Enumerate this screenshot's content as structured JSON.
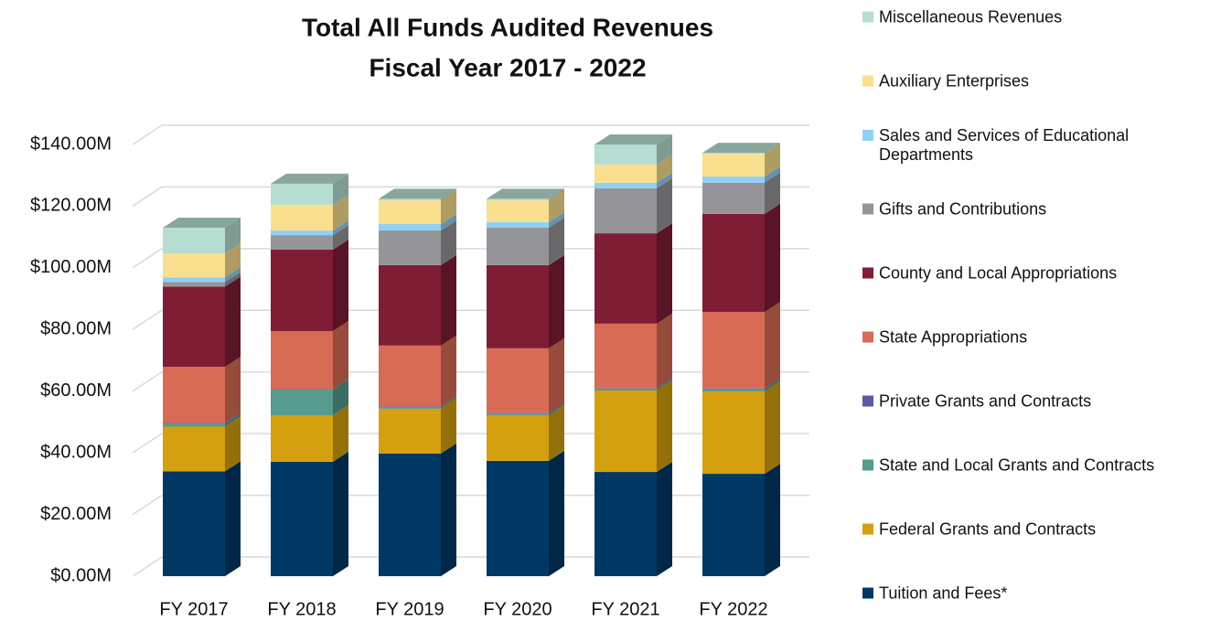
{
  "chart_data": {
    "type": "stacked-bar-3d",
    "title": "Total All Funds Audited Revenues",
    "subtitle": "Fiscal Year 2017 - 2022",
    "categories": [
      "FY 2017",
      "FY 2018",
      "FY 2019",
      "FY 2020",
      "FY 2021",
      "FY 2022"
    ],
    "ylim": [
      0,
      140
    ],
    "yticks": [
      {
        "value": 0,
        "label": "$0.00M"
      },
      {
        "value": 20,
        "label": "$20.00M"
      },
      {
        "value": 40,
        "label": "$40.00M"
      },
      {
        "value": 60,
        "label": "$60.00M"
      },
      {
        "value": 80,
        "label": "$80.00M"
      },
      {
        "value": 100,
        "label": "$100.00M"
      },
      {
        "value": 120,
        "label": "$120.00M"
      },
      {
        "value": 140,
        "label": "$140.00M"
      }
    ],
    "grid": true,
    "series": [
      {
        "name": "Tuition and Fees*",
        "color": "#003865",
        "values": [
          34,
          37.1,
          39.8,
          37.4,
          33.8,
          33.2
        ]
      },
      {
        "name": "Federal Grants and Contracts",
        "color": "#d4a00f",
        "values": [
          14.5,
          15.1,
          14.5,
          14.8,
          26.4,
          26.7
        ]
      },
      {
        "name": "State and Local Grants and Contracts",
        "color": "#579a8e",
        "values": [
          1,
          8.3,
          0.5,
          0.5,
          0.5,
          0.8
        ]
      },
      {
        "name": "Private Grants and Contracts",
        "color": "#5c5aa0",
        "values": [
          0.2,
          0.2,
          0.2,
          0.2,
          0.2,
          0.2
        ]
      },
      {
        "name": "State Appropriations",
        "color": "#d86b55",
        "values": [
          18.2,
          18.8,
          19.8,
          21,
          21,
          24.8
        ]
      },
      {
        "name": "County and Local Appropriations",
        "color": "#7f1d35",
        "values": [
          26,
          26.4,
          26.1,
          27,
          29.3,
          31.8
        ]
      },
      {
        "name": "Gifts and Contributions",
        "color": "#949499",
        "values": [
          1.5,
          4.7,
          11.2,
          12.1,
          14.6,
          10.1
        ]
      },
      {
        "name": "Sales and Services of Educational Departments",
        "color": "#8fd0f5",
        "values": [
          1.5,
          1.5,
          2.1,
          1.8,
          1.8,
          2
        ]
      },
      {
        "name": "Auxiliary Enterprises",
        "color": "#fadf8f",
        "values": [
          7.8,
          8.3,
          7.7,
          7.1,
          5.9,
          7.4
        ]
      },
      {
        "name": "Miscellaneous Revenues",
        "color": "#b6ddd1",
        "values": [
          8.3,
          6.9,
          0.5,
          0.5,
          6.5,
          0.3
        ]
      }
    ]
  }
}
